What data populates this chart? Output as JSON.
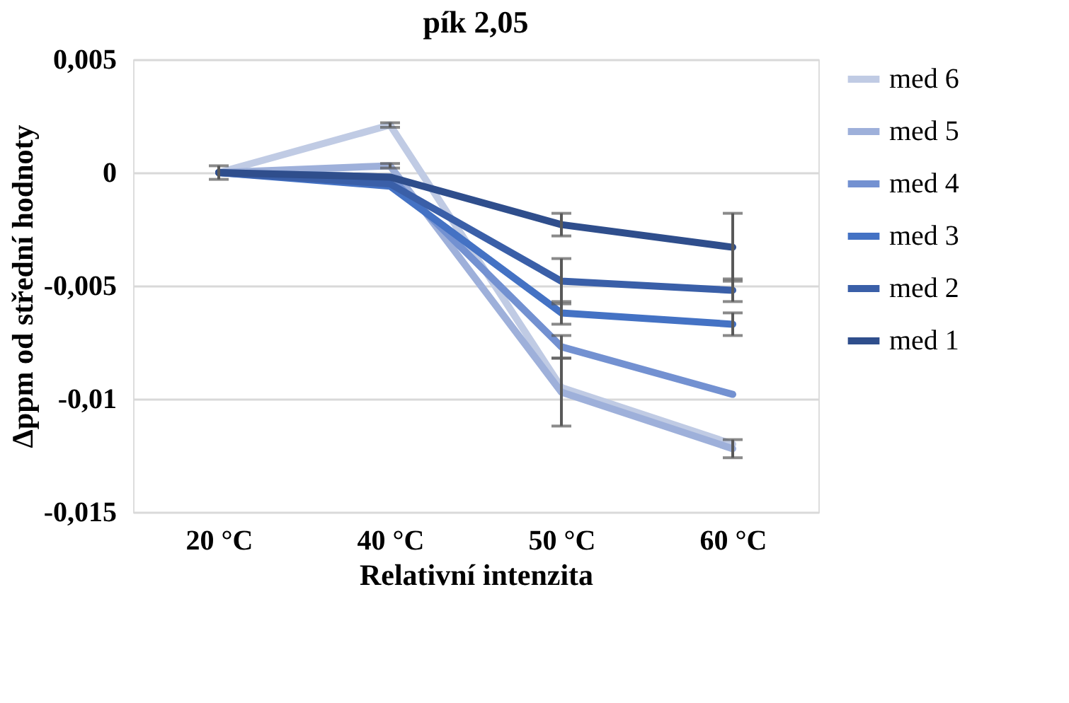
{
  "chart_data": {
    "type": "line",
    "title": "pík 2,05",
    "xlabel": "Relativní intenzita",
    "ylabel": "Δppm od střední hodnoty",
    "categories": [
      "20 °C",
      "40 °C",
      "50 °C",
      "60 °C"
    ],
    "series": [
      {
        "name": "med 6",
        "color": "#c0cbe4",
        "values": [
          0,
          0.0021,
          -0.0095,
          -0.012
        ],
        "errors": [
          0.0003,
          0.0001,
          null,
          null
        ]
      },
      {
        "name": "med 5",
        "color": "#9eb0da",
        "values": [
          0,
          0.0003,
          -0.0097,
          -0.0122
        ],
        "errors": [
          null,
          0.0001,
          0.0015,
          0.0004
        ]
      },
      {
        "name": "med 4",
        "color": "#7391d1",
        "values": [
          0,
          -0.0002,
          -0.0077,
          -0.0098
        ],
        "errors": [
          null,
          null,
          0.0005,
          null
        ]
      },
      {
        "name": "med 3",
        "color": "#4472c4",
        "values": [
          0,
          -0.0006,
          -0.0062,
          -0.0067
        ],
        "errors": [
          null,
          null,
          0.0005,
          0.0005
        ]
      },
      {
        "name": "med 2",
        "color": "#3a5fa8",
        "values": [
          0,
          -0.0005,
          -0.0048,
          -0.0052
        ],
        "errors": [
          null,
          null,
          0.001,
          0.0005
        ]
      },
      {
        "name": "med 1",
        "color": "#2f4e8c",
        "values": [
          0,
          -0.0002,
          -0.0023,
          -0.0033
        ],
        "errors": [
          null,
          null,
          0.0005,
          0.0015
        ]
      }
    ],
    "ylim": [
      -0.015,
      0.005
    ],
    "yticks": [
      {
        "value": -0.015,
        "label": "-0,015"
      },
      {
        "value": -0.01,
        "label": "-0,01"
      },
      {
        "value": -0.005,
        "label": "-0,005"
      },
      {
        "value": 0,
        "label": "0"
      },
      {
        "value": 0.005,
        "label": "0,005"
      }
    ],
    "grid": "y",
    "legend": "right",
    "line_style": "solid",
    "marker": "none"
  }
}
